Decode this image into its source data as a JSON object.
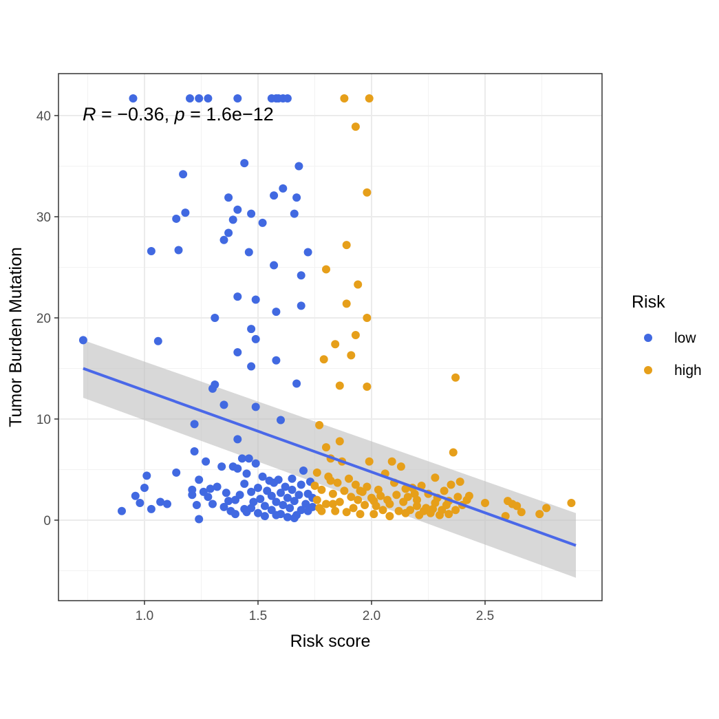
{
  "chart_data": {
    "type": "scatter",
    "title": "",
    "xlabel": "Risk score",
    "ylabel": "Tumor Burden Mutation",
    "xlim": [
      0.62,
      3.0
    ],
    "ylim": [
      -8.1,
      44.0
    ],
    "x_ticks": [
      1.0,
      1.5,
      2.0,
      2.5
    ],
    "x_tick_labels": [
      "1.0",
      "1.5",
      "2.0",
      "2.5"
    ],
    "y_ticks": [
      0,
      10,
      20,
      30,
      40
    ],
    "y_tick_labels": [
      "0",
      "10",
      "20",
      "30",
      "40"
    ],
    "grid": true,
    "annotation": {
      "r_label": "R",
      "r_text": " = −0.36, ",
      "p_label": "p",
      "p_text": " = 1.6e−12"
    },
    "legend": {
      "title": "Risk",
      "position": "right",
      "entries": [
        {
          "label": "low",
          "color": "#4169E1"
        },
        {
          "label": "high",
          "color": "#E69F1A"
        }
      ]
    },
    "regression": {
      "x": [
        0.73,
        2.9
      ],
      "y": [
        15.0,
        -2.5
      ],
      "ci_upper": [
        17.8,
        0.7
      ],
      "ci_lower": [
        12.1,
        -5.7
      ],
      "color": "#4A68E8",
      "band_color": "#BEBEBE"
    },
    "series": [
      {
        "name": "low",
        "color": "#4169E1",
        "points": [
          [
            0.95,
            41.7
          ],
          [
            1.2,
            41.7
          ],
          [
            1.24,
            41.7
          ],
          [
            1.28,
            41.7
          ],
          [
            1.41,
            41.7
          ],
          [
            1.56,
            41.7
          ],
          [
            1.58,
            41.7
          ],
          [
            1.59,
            41.7
          ],
          [
            1.61,
            41.7
          ],
          [
            1.63,
            41.7
          ],
          [
            1.44,
            35.3
          ],
          [
            1.68,
            35.0
          ],
          [
            1.17,
            34.2
          ],
          [
            1.61,
            32.8
          ],
          [
            1.57,
            32.1
          ],
          [
            1.67,
            31.9
          ],
          [
            1.37,
            31.9
          ],
          [
            1.41,
            30.7
          ],
          [
            1.18,
            30.4
          ],
          [
            1.47,
            30.3
          ],
          [
            1.14,
            29.8
          ],
          [
            1.66,
            30.3
          ],
          [
            1.39,
            29.7
          ],
          [
            1.52,
            29.4
          ],
          [
            1.37,
            28.4
          ],
          [
            1.35,
            27.7
          ],
          [
            1.03,
            26.6
          ],
          [
            1.15,
            26.7
          ],
          [
            1.72,
            26.5
          ],
          [
            1.46,
            26.5
          ],
          [
            1.57,
            25.2
          ],
          [
            1.69,
            24.2
          ],
          [
            1.41,
            22.1
          ],
          [
            1.49,
            21.8
          ],
          [
            1.69,
            21.2
          ],
          [
            1.58,
            20.6
          ],
          [
            1.31,
            20.0
          ],
          [
            1.47,
            18.9
          ],
          [
            1.49,
            17.9
          ],
          [
            1.06,
            17.7
          ],
          [
            0.73,
            17.8
          ],
          [
            1.41,
            16.6
          ],
          [
            1.47,
            15.2
          ],
          [
            1.58,
            15.8
          ],
          [
            1.67,
            13.5
          ],
          [
            1.31,
            13.4
          ],
          [
            1.3,
            13.0
          ],
          [
            1.35,
            11.4
          ],
          [
            1.49,
            11.2
          ],
          [
            1.6,
            9.9
          ],
          [
            1.22,
            9.5
          ],
          [
            1.41,
            8.0
          ],
          [
            0.9,
            0.9
          ],
          [
            0.96,
            2.4
          ],
          [
            0.98,
            1.7
          ],
          [
            1.0,
            3.2
          ],
          [
            1.01,
            4.4
          ],
          [
            1.03,
            1.1
          ],
          [
            1.07,
            1.8
          ],
          [
            1.1,
            1.6
          ],
          [
            1.14,
            4.7
          ],
          [
            1.21,
            3.0
          ],
          [
            1.21,
            2.5
          ],
          [
            1.22,
            6.8
          ],
          [
            1.23,
            1.5
          ],
          [
            1.24,
            4.0
          ],
          [
            1.24,
            0.1
          ],
          [
            1.26,
            2.8
          ],
          [
            1.27,
            5.8
          ],
          [
            1.28,
            2.3
          ],
          [
            1.29,
            3.1
          ],
          [
            1.3,
            1.6
          ],
          [
            1.32,
            3.3
          ],
          [
            1.34,
            5.3
          ],
          [
            1.35,
            1.3
          ],
          [
            1.37,
            1.9
          ],
          [
            1.38,
            0.9
          ],
          [
            1.39,
            5.3
          ],
          [
            1.4,
            2.0
          ],
          [
            1.41,
            5.1
          ],
          [
            1.42,
            2.5
          ],
          [
            1.43,
            6.1
          ],
          [
            1.44,
            3.6
          ],
          [
            1.44,
            1.1
          ],
          [
            1.45,
            4.6
          ],
          [
            1.46,
            6.1
          ],
          [
            1.47,
            2.8
          ],
          [
            1.48,
            1.8
          ],
          [
            1.49,
            5.6
          ],
          [
            1.5,
            3.2
          ],
          [
            1.5,
            0.7
          ],
          [
            1.51,
            2.1
          ],
          [
            1.52,
            4.3
          ],
          [
            1.53,
            1.4
          ],
          [
            1.54,
            2.9
          ],
          [
            1.55,
            3.9
          ],
          [
            1.56,
            1.0
          ],
          [
            1.56,
            2.4
          ],
          [
            1.57,
            3.7
          ],
          [
            1.58,
            1.8
          ],
          [
            1.59,
            4.0
          ],
          [
            1.6,
            2.7
          ],
          [
            1.6,
            0.6
          ],
          [
            1.61,
            1.5
          ],
          [
            1.62,
            3.3
          ],
          [
            1.63,
            2.2
          ],
          [
            1.63,
            0.3
          ],
          [
            1.64,
            1.2
          ],
          [
            1.65,
            3.0
          ],
          [
            1.65,
            4.1
          ],
          [
            1.66,
            1.9
          ],
          [
            1.67,
            0.5
          ],
          [
            1.68,
            2.5
          ],
          [
            1.69,
            1.0
          ],
          [
            1.69,
            3.5
          ],
          [
            1.7,
            4.9
          ],
          [
            1.71,
            1.6
          ],
          [
            1.72,
            2.6
          ],
          [
            1.72,
            0.9
          ],
          [
            1.73,
            3.8
          ],
          [
            1.74,
            1.3
          ],
          [
            1.74,
            2.2
          ],
          [
            1.4,
            0.6
          ],
          [
            1.45,
            0.8
          ],
          [
            1.36,
            2.7
          ],
          [
            1.53,
            0.4
          ],
          [
            1.66,
            0.2
          ],
          [
            1.58,
            0.5
          ],
          [
            1.47,
            1.2
          ]
        ]
      },
      {
        "name": "high",
        "color": "#E69F1A",
        "points": [
          [
            1.88,
            41.7
          ],
          [
            1.99,
            41.7
          ],
          [
            1.93,
            38.9
          ],
          [
            1.98,
            32.4
          ],
          [
            1.89,
            27.2
          ],
          [
            1.8,
            24.8
          ],
          [
            1.94,
            23.3
          ],
          [
            1.89,
            21.4
          ],
          [
            1.98,
            20.0
          ],
          [
            1.93,
            18.3
          ],
          [
            1.84,
            17.4
          ],
          [
            1.91,
            16.3
          ],
          [
            1.79,
            15.9
          ],
          [
            1.86,
            13.3
          ],
          [
            1.98,
            13.2
          ],
          [
            2.37,
            14.1
          ],
          [
            1.77,
            9.4
          ],
          [
            1.86,
            7.8
          ],
          [
            1.8,
            7.2
          ],
          [
            1.82,
            6.1
          ],
          [
            1.76,
            4.7
          ],
          [
            1.78,
            3.0
          ],
          [
            1.8,
            1.6
          ],
          [
            1.81,
            4.3
          ],
          [
            1.83,
            2.6
          ],
          [
            1.84,
            0.9
          ],
          [
            1.85,
            3.7
          ],
          [
            1.86,
            1.8
          ],
          [
            1.87,
            5.8
          ],
          [
            1.88,
            2.9
          ],
          [
            1.89,
            0.8
          ],
          [
            1.9,
            4.1
          ],
          [
            1.91,
            2.3
          ],
          [
            1.92,
            1.2
          ],
          [
            1.93,
            3.5
          ],
          [
            1.94,
            2.0
          ],
          [
            1.95,
            0.6
          ],
          [
            1.96,
            2.8
          ],
          [
            1.97,
            1.5
          ],
          [
            1.98,
            3.3
          ],
          [
            1.99,
            5.8
          ],
          [
            2.0,
            2.2
          ],
          [
            2.01,
            0.6
          ],
          [
            2.02,
            1.4
          ],
          [
            2.03,
            3.0
          ],
          [
            2.04,
            2.4
          ],
          [
            2.05,
            1.0
          ],
          [
            2.06,
            4.6
          ],
          [
            2.07,
            2.0
          ],
          [
            2.08,
            1.6
          ],
          [
            2.09,
            5.8
          ],
          [
            2.1,
            3.7
          ],
          [
            2.11,
            2.5
          ],
          [
            2.12,
            0.9
          ],
          [
            2.13,
            5.3
          ],
          [
            2.14,
            1.8
          ],
          [
            2.15,
            3.1
          ],
          [
            2.16,
            2.3
          ],
          [
            2.17,
            1.0
          ],
          [
            2.18,
            3.2
          ],
          [
            2.19,
            2.6
          ],
          [
            2.2,
            1.4
          ],
          [
            2.21,
            0.5
          ],
          [
            2.22,
            3.4
          ],
          [
            2.23,
            0.9
          ],
          [
            2.24,
            1.2
          ],
          [
            2.25,
            2.6
          ],
          [
            2.26,
            0.7
          ],
          [
            2.27,
            1.1
          ],
          [
            2.28,
            4.2
          ],
          [
            2.29,
            2.2
          ],
          [
            2.3,
            0.5
          ],
          [
            2.31,
            1.0
          ],
          [
            2.32,
            2.9
          ],
          [
            2.33,
            1.5
          ],
          [
            2.34,
            0.6
          ],
          [
            2.35,
            3.5
          ],
          [
            2.36,
            6.7
          ],
          [
            2.37,
            1.0
          ],
          [
            2.38,
            2.3
          ],
          [
            2.39,
            3.8
          ],
          [
            2.4,
            1.5
          ],
          [
            2.42,
            2.0
          ],
          [
            2.43,
            2.4
          ],
          [
            2.5,
            1.7
          ],
          [
            2.59,
            0.4
          ],
          [
            2.6,
            1.9
          ],
          [
            2.62,
            1.6
          ],
          [
            2.64,
            1.4
          ],
          [
            2.66,
            0.8
          ],
          [
            2.74,
            0.6
          ],
          [
            2.77,
            1.2
          ],
          [
            2.88,
            1.7
          ],
          [
            1.76,
            2.0
          ],
          [
            1.78,
            0.9
          ],
          [
            1.82,
            3.9
          ],
          [
            1.75,
            3.4
          ],
          [
            1.77,
            1.2
          ],
          [
            1.83,
            1.6
          ],
          [
            1.95,
            2.9
          ],
          [
            2.01,
            1.9
          ],
          [
            2.08,
            0.4
          ],
          [
            2.15,
            0.7
          ],
          [
            2.2,
            2.0
          ],
          [
            2.28,
            1.7
          ],
          [
            2.34,
            1.9
          ]
        ]
      }
    ]
  }
}
